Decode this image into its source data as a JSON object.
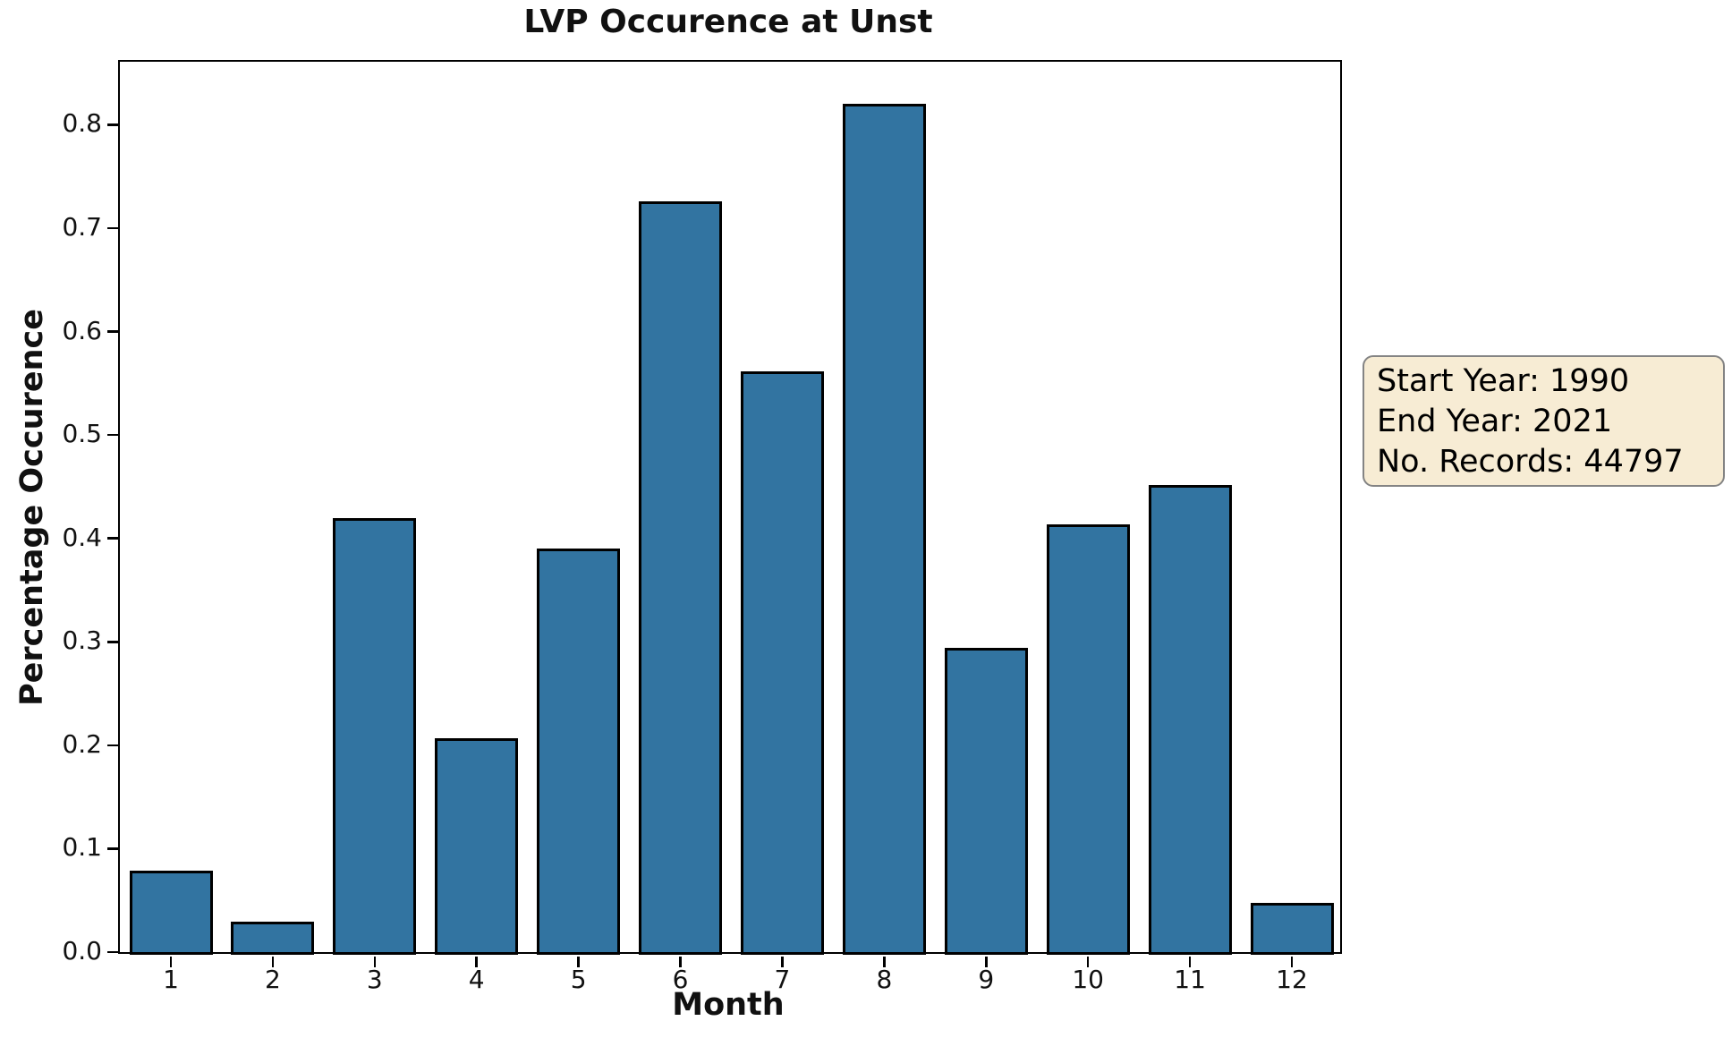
{
  "title": "LVP Occurence at Unst",
  "info_box": {
    "start_year": "Start Year: 1990",
    "end_year": "End Year: 2021",
    "records": "No. Records: 44797"
  },
  "chart_data": {
    "type": "bar",
    "title": "LVP Occurence at Unst",
    "xlabel": "Month",
    "ylabel": "Percentage Occurence",
    "categories": [
      "1",
      "2",
      "3",
      "4",
      "5",
      "6",
      "7",
      "8",
      "9",
      "10",
      "11",
      "12"
    ],
    "values": [
      0.079,
      0.029,
      0.42,
      0.207,
      0.39,
      0.726,
      0.562,
      0.82,
      0.294,
      0.414,
      0.452,
      0.048
    ],
    "yticks": [
      0.0,
      0.1,
      0.2,
      0.3,
      0.4,
      0.5,
      0.6,
      0.7,
      0.8
    ],
    "ytick_labels": [
      "0.0",
      "0.1",
      "0.2",
      "0.3",
      "0.4",
      "0.5",
      "0.6",
      "0.7",
      "0.8"
    ],
    "ylim": [
      0,
      0.861
    ],
    "grid": false,
    "legend": null,
    "bar_color": "#3274a1",
    "bar_edge_color": "#000000",
    "annotation_box": {
      "lines": [
        "Start Year: 1990",
        "End Year: 2021",
        "No. Records: 44797"
      ],
      "background": "#f7ecd4",
      "border_color": "#848484"
    }
  }
}
